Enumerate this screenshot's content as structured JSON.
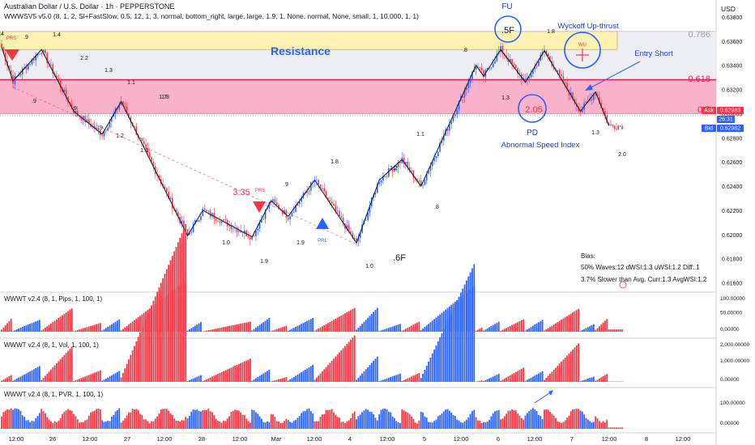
{
  "header": {
    "title": "Australian Dollar / U.S. Dollar · 1h · PEPPERSTONE",
    "indicator": "WWWSV5 v5.0 (8, 1, 2, Sl+FastSlow, 0.5, 12, 1, 3, normal, bottom_right, large, large, 1.9, 1, None, normal, None, small, 1, 10,000, 1, 1)",
    "currency": "USD"
  },
  "labels": {
    "resistance": "Resistance",
    "fib_0786": "0.786",
    "fib_0618": "0.618",
    "fib_05": "0.5",
    "fu": "FU",
    "fu_badge": ".5F",
    "wyckoff": "Wyckoff Up-thrust",
    "wu": "WU",
    "entry_short": "Entry Short",
    "pd": "PD",
    "abnormal": "Abnormal Speed Index",
    "pd_value": "2.05",
    "prs_top": "PRS",
    "prs_mid": "PRS",
    "mid_value": "3.35",
    "prl": "PRL",
    "six_f": ".6F",
    "bias": "Bias:",
    "bias_line1": "50% Waves:12 dWSI:1.3 uWSI:1.2 Diff:.1",
    "bias_line2": "3.7% Slower than Avg. Curr:1.3 AvgWSI:1.2"
  },
  "wave_labels": [
    ".4",
    ".9",
    "1.4",
    "2.2",
    "1.3",
    "1.1",
    "1.8",
    ".9",
    "1.7",
    ".9",
    "1.2",
    "1.1",
    ".9",
    "1.8",
    "1.2",
    "1.0",
    "1.9",
    "1.9",
    "1.0",
    ".9",
    ".8",
    "1.1",
    "1.3",
    "1.8",
    ".8",
    "1.3",
    "2.0"
  ],
  "price_badges": {
    "ask_label": "Ask",
    "ask_price": "0.62983",
    "timer": "26:31",
    "bid_label": "Bid",
    "bid_price": "0.62982"
  },
  "panels": {
    "pips": "WWWT v2.4 (8, 1, Pips, 1, 100, 1)",
    "vol": "WWWT v2.4 (8, 1, Vol, 1, 100, 1)",
    "pvr": "WWWT v2.4 (8, 1, PVR, 1, 100, 1)"
  },
  "panel_ticks": {
    "pips": [
      "100.00000",
      "50.00000",
      "0.00000"
    ],
    "vol": [
      "2,000.00000",
      "1,000.00000",
      "0.00000"
    ],
    "pvr": [
      "100.00000",
      "0.00000"
    ]
  },
  "x_ticks": [
    "12:00",
    "26",
    "12:00",
    "27",
    "12:00",
    "28",
    "12:00",
    "Mar",
    "12:00",
    "4",
    "12:00",
    "5",
    "12:00",
    "6",
    "12:00",
    "7",
    "12:00",
    "8",
    "12:00"
  ],
  "colors": {
    "up": "#2962ff",
    "down": "#f23645",
    "resistance_fill": "#fff2b0",
    "pink_zone": "#f8a4c1",
    "fib_0618": "#e0245e"
  },
  "chart_data": {
    "type": "candlestick",
    "symbol": "AUDUSD",
    "timeframe": "1h",
    "y_ticks": [
      0.638,
      0.636,
      0.634,
      0.632,
      0.63,
      0.628,
      0.626,
      0.624,
      0.622,
      0.62,
      0.618,
      0.616
    ],
    "ylim": [
      0.6155,
      0.639
    ],
    "zones": {
      "resistance": [
        0.6353,
        0.6368
      ],
      "pink": [
        0.63,
        0.6328
      ],
      "fib_0618": 0.6328,
      "fib_0786": 0.6368
    },
    "wave_path": [
      {
        "t": 0,
        "p": 0.6355
      },
      {
        "t": 6,
        "p": 0.6327
      },
      {
        "t": 21,
        "p": 0.6353
      },
      {
        "t": 38,
        "p": 0.6302
      },
      {
        "t": 53,
        "p": 0.6283
      },
      {
        "t": 63,
        "p": 0.631
      },
      {
        "t": 98,
        "p": 0.6199
      },
      {
        "t": 106,
        "p": 0.622
      },
      {
        "t": 132,
        "p": 0.6198
      },
      {
        "t": 142,
        "p": 0.6228
      },
      {
        "t": 151,
        "p": 0.6215
      },
      {
        "t": 165,
        "p": 0.6245
      },
      {
        "t": 187,
        "p": 0.6193
      },
      {
        "t": 199,
        "p": 0.6245
      },
      {
        "t": 211,
        "p": 0.6262
      },
      {
        "t": 221,
        "p": 0.624
      },
      {
        "t": 250,
        "p": 0.634
      },
      {
        "t": 254,
        "p": 0.6331
      },
      {
        "t": 263,
        "p": 0.6353
      },
      {
        "t": 276,
        "p": 0.6326
      },
      {
        "t": 286,
        "p": 0.6352
      },
      {
        "t": 305,
        "p": 0.6302
      },
      {
        "t": 313,
        "p": 0.6318
      },
      {
        "t": 320,
        "p": 0.629
      }
    ],
    "last_close": 0.62983
  }
}
